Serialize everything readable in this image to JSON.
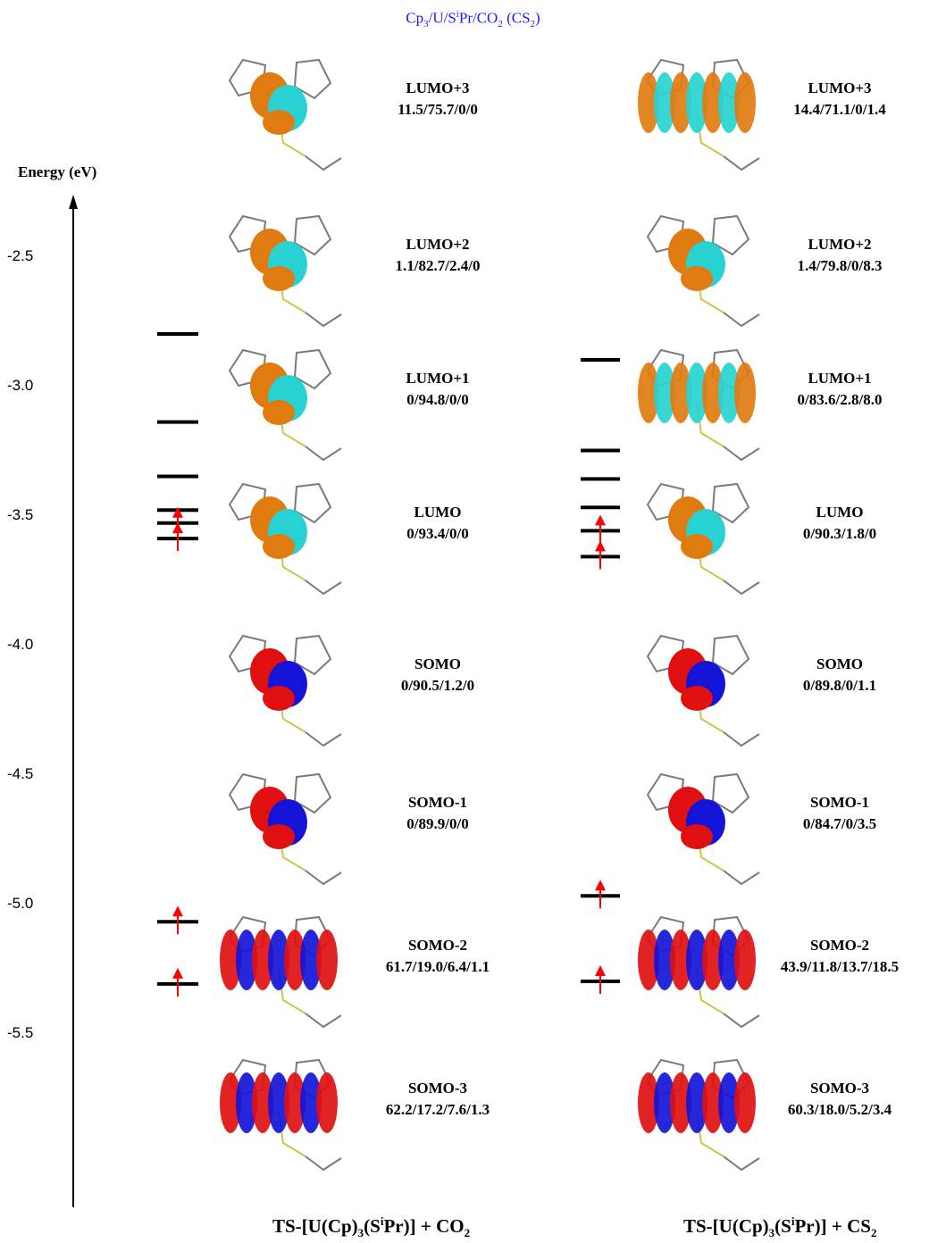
{
  "header": {
    "prefix": "Cp",
    "sub1": "3",
    "mid": "/U/S",
    "sup1": "i",
    "suffix": "Pr/CO",
    "sub2": "2",
    "tail": " (CS",
    "sub3": "2",
    "end": ")"
  },
  "axis": {
    "label": "Energy (eV)",
    "ticks": [
      "-2.5",
      "-3.0",
      "-3.5",
      "-4.0",
      "-4.5",
      "-5.0",
      "-5.5"
    ]
  },
  "left_column": {
    "footer": {
      "pre": "TS-[U(Cp)",
      "s1": "3",
      "m": "(S",
      "sup": "i",
      "post": "Pr)] + CO",
      "s2": "2"
    },
    "orbitals": [
      {
        "name": "LUMO+3",
        "values": "11.5/75.7/0/0"
      },
      {
        "name": "LUMO+2",
        "values": "1.1/82.7/2.4/0"
      },
      {
        "name": "LUMO+1",
        "values": "0/94.8/0/0"
      },
      {
        "name": "LUMO",
        "values": "0/93.4/0/0"
      },
      {
        "name": "SOMO",
        "values": "0/90.5/1.2/0"
      },
      {
        "name": "SOMO-1",
        "values": "0/89.9/0/0"
      },
      {
        "name": "SOMO-2",
        "values": "61.7/19.0/6.4/1.1"
      },
      {
        "name": "SOMO-3",
        "values": "62.2/17.2/7.6/1.3"
      }
    ],
    "levels_ev": [
      -2.8,
      -3.14,
      -3.35,
      -3.48,
      -3.53,
      -3.59,
      -5.07,
      -5.31
    ],
    "occupied_levels_ev": [
      -3.53,
      -3.59,
      -5.07,
      -5.31
    ]
  },
  "right_column": {
    "footer": {
      "pre": "TS-[U(Cp)",
      "s1": "3",
      "m": "(S",
      "sup": "i",
      "post": "Pr)] + CS",
      "s2": "2"
    },
    "orbitals": [
      {
        "name": "LUMO+3",
        "values": "14.4/71.1/0/1.4"
      },
      {
        "name": "LUMO+2",
        "values": "1.4/79.8/0/8.3"
      },
      {
        "name": "LUMO+1",
        "values": "0/83.6/2.8/8.0"
      },
      {
        "name": "LUMO",
        "values": "0/90.3/1.8/0"
      },
      {
        "name": "SOMO",
        "values": "0/89.8/0/1.1"
      },
      {
        "name": "SOMO-1",
        "values": "0/84.7/0/3.5"
      },
      {
        "name": "SOMO-2",
        "values": "43.9/11.8/13.7/18.5"
      },
      {
        "name": "SOMO-3",
        "values": "60.3/18.0/5.2/3.4"
      }
    ],
    "levels_ev": [
      -2.9,
      -3.25,
      -3.36,
      -3.47,
      -3.56,
      -3.66,
      -4.97,
      -5.3
    ],
    "occupied_levels_ev": [
      -3.56,
      -3.66,
      -4.97,
      -5.3
    ]
  },
  "colors": {
    "lumo_pos": "#e07b10",
    "lumo_neg": "#28d2d2",
    "somo_pos": "#e01010",
    "somo_neg": "#1414d8",
    "arrow": "#ff0000",
    "header": "#1a1aff"
  }
}
